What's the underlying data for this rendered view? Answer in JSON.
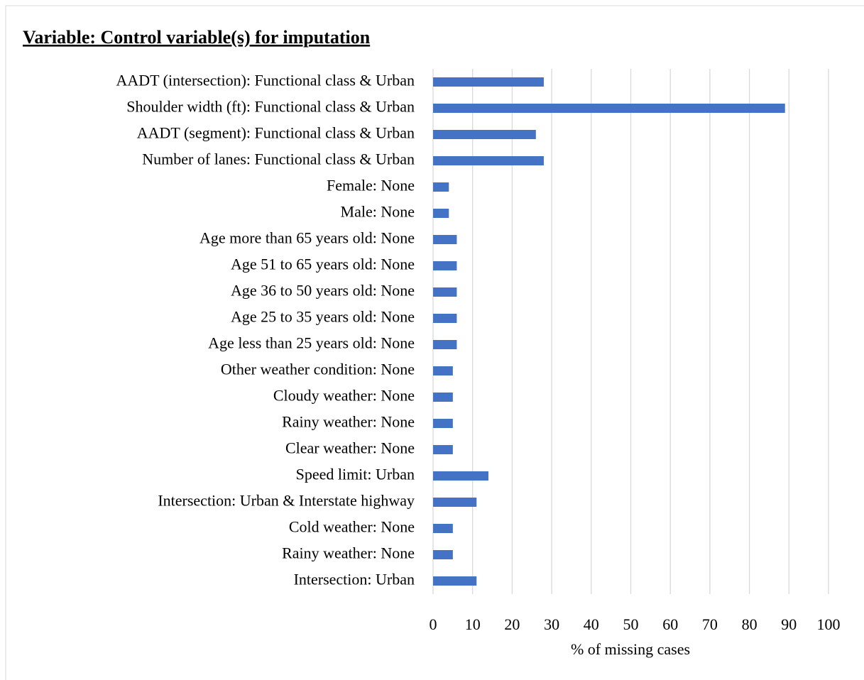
{
  "chart_data": {
    "type": "bar",
    "title": "Variable: Control variable(s) for imputation",
    "xlabel": "% of missing cases",
    "categories": [
      "AADT (intersection): Functional class & Urban",
      "Shoulder width (ft): Functional class & Urban",
      "AADT (segment): Functional class & Urban",
      "Number of lanes: Functional class & Urban",
      "Female: None",
      "Male: None",
      "Age more than 65 years old: None",
      "Age 51 to 65 years old: None",
      "Age 36 to 50 years old: None",
      "Age 25 to 35 years old: None",
      "Age less than 25 years old: None",
      "Other weather condition: None",
      "Cloudy weather: None",
      "Rainy weather: None",
      "Clear weather: None",
      "Speed limit: Urban",
      "Intersection: Urban & Interstate highway",
      "Cold weather: None",
      "Rainy weather: None",
      "Intersection: Urban"
    ],
    "values": [
      28,
      89,
      26,
      28,
      4,
      4,
      6,
      6,
      6,
      6,
      6,
      5,
      5,
      5,
      5,
      14,
      11,
      5,
      5,
      11
    ],
    "color": "#4472c4",
    "xlim": [
      0,
      100
    ],
    "xticks": [
      0,
      10,
      20,
      30,
      40,
      50,
      60,
      70,
      80,
      90,
      100
    ],
    "grid": true
  }
}
